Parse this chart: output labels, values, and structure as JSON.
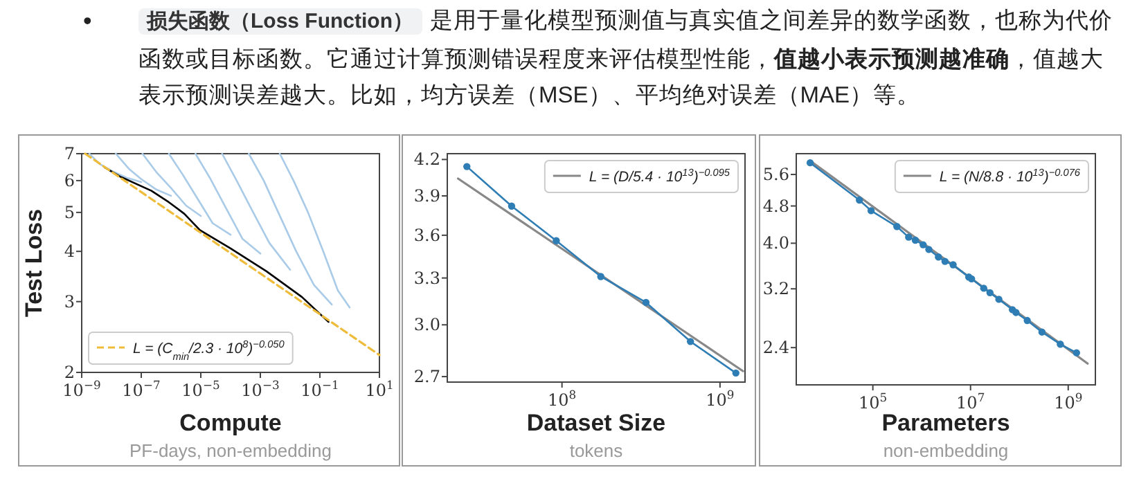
{
  "chart_data": [
    {
      "type": "other",
      "annotations": [
        "•",
        "损失函数（Loss Function）",
        "是用于量化模型预测值与真实值之间差异的数学函数，也称为代价函数或目标函数。它通过计算预测错误程度来评估模型性能，",
        "值越小表示预测越准确",
        "，值越大表示预测误差越大。比如，均方误差（MSE）、平均绝对误差（MAE）等。"
      ]
    },
    {
      "type": "line",
      "xlabel": "Compute",
      "ylabel": "Test Loss",
      "annotations": [
        "PF-days, non-embedding"
      ],
      "log": "xy",
      "xlim": [
        1e-09,
        10
      ],
      "ylim": [
        2,
        7
      ],
      "xticks": [
        {
          "value": 1e-09,
          "label": "10$^{−9}$"
        },
        {
          "value": 1e-07,
          "label": "10$^{−7}$"
        },
        {
          "value": 1e-05,
          "label": "10$^{−5}$"
        },
        {
          "value": 0.001,
          "label": "10$^{−3}$"
        },
        {
          "value": 0.1,
          "label": "10$^{−1}$"
        },
        {
          "value": 10,
          "label": "10$^{1}$"
        }
      ],
      "yticks": [
        2,
        3,
        4,
        5,
        6,
        7
      ],
      "legend": "bottom left",
      "series": [
        {
          "color": "#a9cbe8",
          "x": [
            1.8e-09,
            4e-09,
            1e-08,
            3.2e-08,
            1e-07
          ],
          "values": [
            7,
            6.6,
            6.35,
            6.1,
            5.95
          ]
        },
        {
          "color": "#a9cbe8",
          "x": [
            1.4e-08,
            4e-08,
            1e-07,
            3.2e-07,
            1e-06
          ],
          "values": [
            7,
            6.4,
            6.05,
            5.7,
            5.5
          ]
        },
        {
          "color": "#a9cbe8",
          "x": [
            1.1e-07,
            3.2e-07,
            1e-06,
            3.2e-06,
            1e-05
          ],
          "values": [
            7,
            6.3,
            5.75,
            5.2,
            4.9
          ]
        },
        {
          "color": "#a9cbe8",
          "x": [
            8.5e-07,
            2.5e-06,
            7.9e-06,
            2.5e-05,
            0.0001
          ],
          "values": [
            7,
            6.2,
            5.4,
            4.7,
            4.4
          ]
        },
        {
          "color": "#a9cbe8",
          "x": [
            6.6e-06,
            2e-05,
            6.3e-05,
            0.00025,
            0.001
          ],
          "values": [
            7,
            6.1,
            5.2,
            4.3,
            3.95
          ]
        },
        {
          "color": "#a9cbe8",
          "x": [
            5.2e-05,
            0.00016,
            0.0005,
            0.002,
            0.01
          ],
          "values": [
            7,
            6.0,
            5.1,
            4.2,
            3.6
          ]
        },
        {
          "color": "#a9cbe8",
          "x": [
            0.00041,
            0.0013,
            0.004,
            0.016,
            0.063,
            0.25
          ],
          "values": [
            7,
            6.0,
            5.0,
            4.0,
            3.3,
            2.95
          ]
        },
        {
          "color": "#a9cbe8",
          "x": [
            0.0045,
            0.013,
            0.04,
            0.13,
            0.4,
            1
          ],
          "values": [
            7,
            6.0,
            5.0,
            4.0,
            3.2,
            2.9
          ]
        },
        {
          "color": "#000000",
          "x": [
            5.9e-09,
            1.95e-08,
            2.2e-07,
            8.5e-07,
            2.8e-06,
            9.3e-06,
            0.0001,
            0.0016,
            0.025,
            0.195
          ],
          "values": [
            6.47,
            6.14,
            5.66,
            5.3,
            4.96,
            4.52,
            4.07,
            3.57,
            3.08,
            2.67
          ]
        },
        {
          "name": "L = (C$_{min}$/2.3 · 10$^{8}$)$^{−0.050}$",
          "color": "#eebc3a",
          "line_style": "dashed",
          "x": [
            1.3e-09,
            1e-05,
            0.1,
            10
          ],
          "values": [
            7,
            4.45,
            2.79,
            2.21
          ]
        }
      ]
    },
    {
      "type": "line",
      "xlabel": "Dataset Size",
      "annotations": [
        "tokens"
      ],
      "log": "xy",
      "xlim": [
        18800000.0,
        1440000000.0
      ],
      "ylim": [
        2.67,
        4.25
      ],
      "xticks": [
        {
          "value": 100000000.0,
          "label": "10$^{8}$"
        },
        {
          "value": 1000000000.0,
          "label": "10$^{9}$"
        }
      ],
      "yticks": [
        {
          "value": 4.2,
          "label": "4.2"
        },
        {
          "value": 3.9,
          "label": "3.9"
        },
        {
          "value": 3.6,
          "label": "3.6"
        },
        {
          "value": 3.3,
          "label": "3.3"
        },
        {
          "value": 3,
          "label": "3.0"
        },
        {
          "value": 2.7,
          "label": "2.7"
        }
      ],
      "legend": "top right",
      "series": [
        {
          "name": "L = (D/5.4 · 10$^{13}$)$^{−0.095}$",
          "color": "#888888",
          "x": [
            22000000.0,
            1400000000.0
          ],
          "values": [
            4.04,
            2.73
          ]
        },
        {
          "color": "#2f7db5",
          "marker": "circle",
          "x": [
            25000000.0,
            48000000.0,
            92000000.0,
            176000000.0,
            340000000.0,
            650000000.0,
            1260000000.0
          ],
          "values": [
            4.14,
            3.82,
            3.56,
            3.31,
            3.14,
            2.9,
            2.72
          ]
        }
      ]
    },
    {
      "type": "line",
      "xlabel": "Parameters",
      "annotations": [
        "non-embedding"
      ],
      "log": "xy",
      "xlim": [
        2700.0,
        3600000000.0
      ],
      "ylim": [
        2.0,
        6.2
      ],
      "xticks": [
        {
          "value": 100000.0,
          "label": "10$^{5}$"
        },
        {
          "value": 10000000.0,
          "label": "10$^{7}$"
        },
        {
          "value": 1000000000.0,
          "label": "10$^{9}$"
        }
      ],
      "yticks": [
        5.6,
        4.8,
        {
          "value": 4,
          "label": "4.0"
        },
        3.2,
        2.4
      ],
      "legend": "top right",
      "series": [
        {
          "name": "L = (N/8.8 · 10$^{13}$)$^{−0.076}$",
          "color": "#888888",
          "x": [
            5200.0,
            2500000000.0
          ],
          "values": [
            5.99,
            2.22
          ]
        },
        {
          "color": "#2f7db5",
          "marker": "circle",
          "x": [
            5200.0,
            53000.0,
            92000.0,
            310000.0,
            540000.0,
            740000.0,
            1070000.0,
            1400000.0,
            2200000.0,
            3000000.0,
            4400000.0,
            9200000.0,
            10500000.0,
            18600000.0,
            25000000.0,
            38000000.0,
            72000000.0,
            85000000.0,
            145000000.0,
            290000000.0,
            690000000.0,
            1480000000.0
          ],
          "values": [
            5.93,
            4.94,
            4.69,
            4.34,
            4.12,
            4.06,
            3.97,
            3.88,
            3.74,
            3.66,
            3.6,
            3.39,
            3.36,
            3.21,
            3.14,
            3.04,
            2.89,
            2.85,
            2.74,
            2.59,
            2.44,
            2.34
          ]
        }
      ]
    }
  ]
}
